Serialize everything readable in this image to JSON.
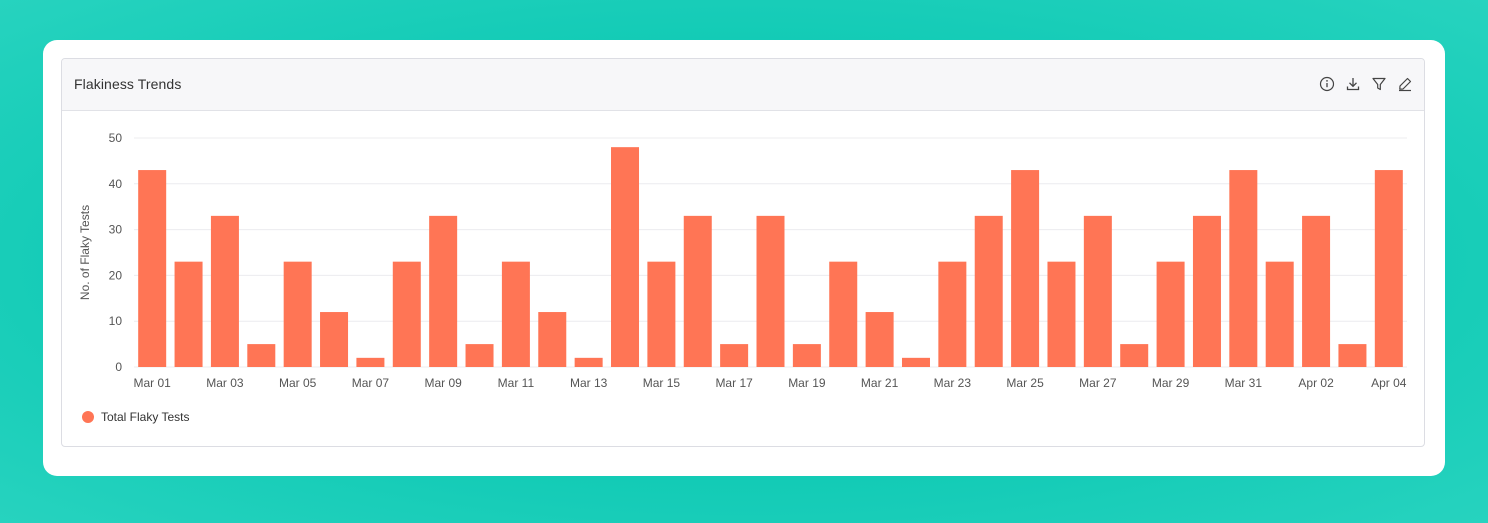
{
  "panel": {
    "title": "Flakiness Trends",
    "toolbar": {
      "info_icon": "info-icon",
      "download_icon": "download-icon",
      "filter_icon": "filter-icon",
      "edit_icon": "edit-icon"
    }
  },
  "colors": {
    "bar": "#ff7555",
    "grid": "#ececef",
    "tick_text": "#555555",
    "background_teal": "#14cdb7"
  },
  "chart_data": {
    "type": "bar",
    "ylabel": "No. of Flaky Tests",
    "xlabel": "",
    "ylim": [
      0,
      50
    ],
    "yticks": [
      0,
      10,
      20,
      30,
      40,
      50
    ],
    "grid": true,
    "legend_position": "bottom-left",
    "categories": [
      "Mar 01",
      "Mar 02",
      "Mar 03",
      "Mar 04",
      "Mar 05",
      "Mar 06",
      "Mar 07",
      "Mar 08",
      "Mar 09",
      "Mar 10",
      "Mar 11",
      "Mar 12",
      "Mar 13",
      "Mar 14",
      "Mar 15",
      "Mar 16",
      "Mar 17",
      "Mar 18",
      "Mar 19",
      "Mar 20",
      "Mar 21",
      "Mar 22",
      "Mar 23",
      "Mar 24",
      "Mar 25",
      "Mar 26",
      "Mar 27",
      "Mar 28",
      "Mar 29",
      "Mar 30",
      "Mar 31",
      "Apr 01",
      "Apr 02",
      "Apr 03",
      "Apr 04"
    ],
    "xtick_labels": [
      "Mar 01",
      "Mar 03",
      "Mar 05",
      "Mar 07",
      "Mar 09",
      "Mar 11",
      "Mar 13",
      "Mar 15",
      "Mar 17",
      "Mar 19",
      "Mar 21",
      "Mar 23",
      "Mar 25",
      "Mar 27",
      "Mar 29",
      "Mar 31",
      "Apr 02",
      "Apr 04"
    ],
    "series": [
      {
        "name": "Total Flaky Tests",
        "values": [
          43,
          23,
          33,
          5,
          23,
          12,
          2,
          23,
          33,
          5,
          23,
          12,
          2,
          48,
          23,
          33,
          5,
          33,
          5,
          23,
          12,
          2,
          23,
          33,
          43,
          23,
          33,
          5,
          23,
          33,
          43,
          23,
          33,
          5,
          43
        ]
      }
    ]
  }
}
